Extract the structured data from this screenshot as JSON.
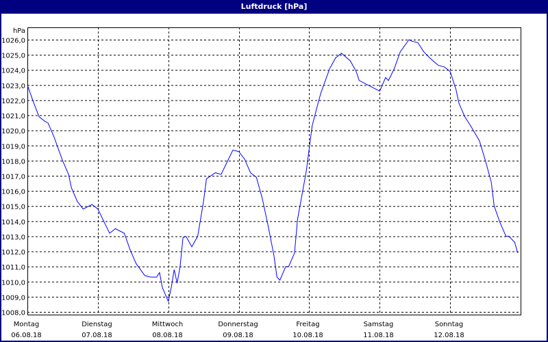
{
  "window": {
    "title": "Luftdruck [hPa]"
  },
  "colors": {
    "titlebar": "#000080",
    "line": "#0000ff",
    "grid": "#000000"
  },
  "chart_data": {
    "type": "line",
    "title": "Luftdruck [hPa]",
    "ylabel": "hPa",
    "xlabel": "",
    "ylim": [
      1008.0,
      1026.0
    ],
    "yticks": [
      "1008,0",
      "1009,0",
      "1010,0",
      "1011,0",
      "1012,0",
      "1013,0",
      "1014,0",
      "1015,0",
      "1016,0",
      "1017,0",
      "1018,0",
      "1019,0",
      "1020,0",
      "1021,0",
      "1022,0",
      "1023,0",
      "1024,0",
      "1025,0",
      "1026,0"
    ],
    "xlim": [
      "2018-08-06 00:00",
      "2018-08-13 00:00"
    ],
    "xticks": [
      {
        "day": "Montag",
        "date": "06.08.18"
      },
      {
        "day": "Dienstag",
        "date": "07.08.18"
      },
      {
        "day": "Mittwoch",
        "date": "08.08.18"
      },
      {
        "day": "Donnerstag",
        "date": "09.08.18"
      },
      {
        "day": "Freitag",
        "date": "10.08.18"
      },
      {
        "day": "Samstag",
        "date": "11.08.18"
      },
      {
        "day": "Sonntag",
        "date": "12.08.18"
      }
    ],
    "grid": true,
    "legend": "none",
    "series": [
      {
        "color": "#0000ff",
        "points": [
          [
            "2018-08-06 00:00",
            1023.0
          ],
          [
            "2018-08-06 02:00",
            1021.9
          ],
          [
            "2018-08-06 04:00",
            1020.9
          ],
          [
            "2018-08-06 06:00",
            1020.6
          ],
          [
            "2018-08-06 07:00",
            1020.5
          ],
          [
            "2018-08-06 09:00",
            1019.6
          ],
          [
            "2018-08-06 12:00",
            1018.0
          ],
          [
            "2018-08-06 14:00",
            1017.1
          ],
          [
            "2018-08-06 15:00",
            1016.2
          ],
          [
            "2018-08-06 17:00",
            1015.3
          ],
          [
            "2018-08-06 19:00",
            1014.8
          ],
          [
            "2018-08-06 21:00",
            1015.0
          ],
          [
            "2018-08-06 22:00",
            1015.1
          ],
          [
            "2018-08-07 00:00",
            1014.8
          ],
          [
            "2018-08-07 02:00",
            1014.0
          ],
          [
            "2018-08-07 04:00",
            1013.2
          ],
          [
            "2018-08-07 06:00",
            1013.5
          ],
          [
            "2018-08-07 09:00",
            1013.2
          ],
          [
            "2018-08-07 11:00",
            1012.1
          ],
          [
            "2018-08-07 13:00",
            1011.2
          ],
          [
            "2018-08-07 16:00",
            1010.4
          ],
          [
            "2018-08-07 18:00",
            1010.3
          ],
          [
            "2018-08-07 20:00",
            1010.3
          ],
          [
            "2018-08-07 21:00",
            1010.6
          ],
          [
            "2018-08-07 22:00",
            1009.6
          ],
          [
            "2018-08-08 00:00",
            1008.7
          ],
          [
            "2018-08-08 01:00",
            1009.6
          ],
          [
            "2018-08-08 02:00",
            1010.8
          ],
          [
            "2018-08-08 03:00",
            1009.9
          ],
          [
            "2018-08-08 04:00",
            1011.0
          ],
          [
            "2018-08-08 05:00",
            1012.9
          ],
          [
            "2018-08-08 06:00",
            1013.0
          ],
          [
            "2018-08-08 08:00",
            1012.3
          ],
          [
            "2018-08-08 10:00",
            1013.0
          ],
          [
            "2018-08-08 12:00",
            1015.3
          ],
          [
            "2018-08-08 13:00",
            1016.8
          ],
          [
            "2018-08-08 16:00",
            1017.2
          ],
          [
            "2018-08-08 18:00",
            1017.1
          ],
          [
            "2018-08-08 20:00",
            1017.9
          ],
          [
            "2018-08-08 22:00",
            1018.7
          ],
          [
            "2018-08-09 00:00",
            1018.6
          ],
          [
            "2018-08-09 02:00",
            1018.1
          ],
          [
            "2018-08-09 04:00",
            1017.2
          ],
          [
            "2018-08-09 06:00",
            1016.9
          ],
          [
            "2018-08-09 08:00",
            1015.5
          ],
          [
            "2018-08-09 10:00",
            1013.7
          ],
          [
            "2018-08-09 12:00",
            1011.7
          ],
          [
            "2018-08-09 13:00",
            1010.3
          ],
          [
            "2018-08-09 14:00",
            1010.1
          ],
          [
            "2018-08-09 16:00",
            1011.0
          ],
          [
            "2018-08-09 17:00",
            1011.0
          ],
          [
            "2018-08-09 19:00",
            1011.9
          ],
          [
            "2018-08-09 20:00",
            1014.1
          ],
          [
            "2018-08-09 23:00",
            1017.3
          ],
          [
            "2018-08-10 01:00",
            1020.3
          ],
          [
            "2018-08-10 03:00",
            1021.8
          ],
          [
            "2018-08-10 04:00",
            1022.5
          ],
          [
            "2018-08-10 07:00",
            1024.1
          ],
          [
            "2018-08-10 09:00",
            1024.8
          ],
          [
            "2018-08-10 11:00",
            1025.1
          ],
          [
            "2018-08-10 14:00",
            1024.6
          ],
          [
            "2018-08-10 16:00",
            1023.9
          ],
          [
            "2018-08-10 17:00",
            1023.3
          ],
          [
            "2018-08-10 20:00",
            1023.0
          ],
          [
            "2018-08-10 22:00",
            1022.8
          ],
          [
            "2018-08-11 00:00",
            1022.6
          ],
          [
            "2018-08-11 02:00",
            1023.5
          ],
          [
            "2018-08-11 03:00",
            1023.3
          ],
          [
            "2018-08-11 05:00",
            1024.1
          ],
          [
            "2018-08-11 07:00",
            1025.2
          ],
          [
            "2018-08-11 10:00",
            1026.0
          ],
          [
            "2018-08-11 11:00",
            1025.9
          ],
          [
            "2018-08-11 13:00",
            1025.8
          ],
          [
            "2018-08-11 15:00",
            1025.2
          ],
          [
            "2018-08-11 17:00",
            1024.8
          ],
          [
            "2018-08-11 20:00",
            1024.3
          ],
          [
            "2018-08-11 22:00",
            1024.2
          ],
          [
            "2018-08-12 00:00",
            1023.9
          ],
          [
            "2018-08-12 02:00",
            1022.7
          ],
          [
            "2018-08-12 03:00",
            1021.8
          ],
          [
            "2018-08-12 05:00",
            1020.9
          ],
          [
            "2018-08-12 07:00",
            1020.3
          ],
          [
            "2018-08-12 10:00",
            1019.3
          ],
          [
            "2018-08-12 12:00",
            1018.0
          ],
          [
            "2018-08-12 14:00",
            1016.6
          ],
          [
            "2018-08-12 15:00",
            1015.0
          ],
          [
            "2018-08-12 17:00",
            1013.9
          ],
          [
            "2018-08-12 19:00",
            1013.0
          ],
          [
            "2018-08-12 20:00",
            1013.0
          ],
          [
            "2018-08-12 22:00",
            1012.6
          ],
          [
            "2018-08-12 23:00",
            1011.9
          ]
        ]
      }
    ]
  }
}
